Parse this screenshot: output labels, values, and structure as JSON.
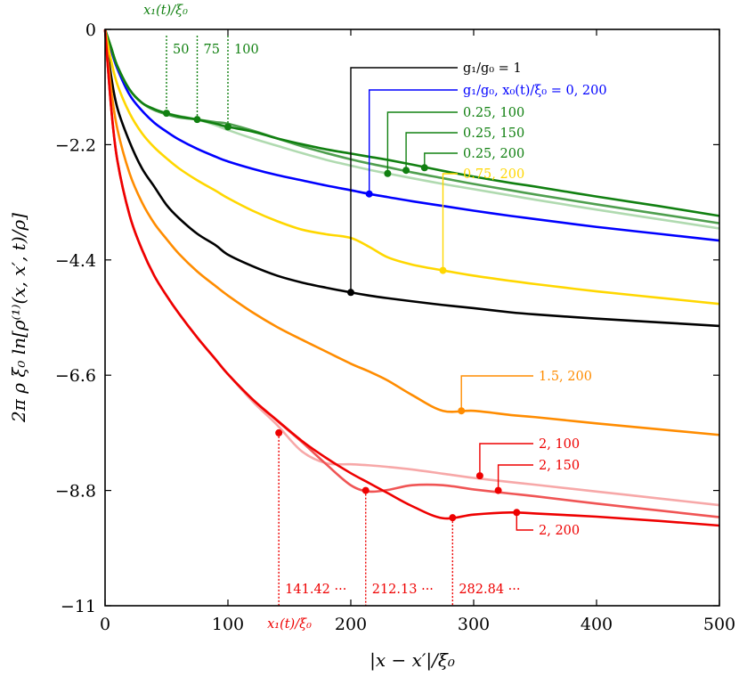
{
  "chart_data": {
    "type": "line",
    "xlabel": "|x − x′|/ξ₀",
    "ylabel": "2π ρ ξ₀ ln[ρ⁽¹⁾(x, x′, t)/ρ]",
    "xlim": [
      0,
      500
    ],
    "ylim": [
      -11,
      0
    ],
    "x_ticks": [
      0,
      100,
      200,
      300,
      400,
      500
    ],
    "x_tick_labels": [
      "0",
      "100",
      "200",
      "300",
      "400",
      "500"
    ],
    "y_ticks": [
      0,
      -2.2,
      -4.4,
      -6.6,
      -8.8,
      -11
    ],
    "y_tick_labels": [
      "0",
      "−2.2",
      "−4.4",
      "−6.6",
      "−8.8",
      "−11"
    ],
    "grid": false,
    "x": [
      0,
      5,
      10,
      20,
      30,
      40,
      50,
      60,
      75,
      90,
      100,
      120,
      140,
      160,
      180,
      200,
      215,
      230,
      250,
      275,
      300,
      330,
      350,
      400,
      450,
      500
    ],
    "series": [
      {
        "name": "g₁/g₀ = 1",
        "color": "#000000",
        "values": [
          -0.02,
          -0.9,
          -1.5,
          -2.15,
          -2.65,
          -3.0,
          -3.35,
          -3.6,
          -3.9,
          -4.12,
          -4.3,
          -4.52,
          -4.7,
          -4.83,
          -4.93,
          -5.02,
          -5.08,
          -5.13,
          -5.19,
          -5.26,
          -5.32,
          -5.4,
          -5.44,
          -5.52,
          -5.59,
          -5.66
        ]
      },
      {
        "name": "g₁/g₀, x₀(t)/ξ₀ = 0, 200",
        "color": "#0000ff",
        "values": [
          0,
          -0.4,
          -0.75,
          -1.25,
          -1.55,
          -1.78,
          -1.95,
          -2.1,
          -2.28,
          -2.43,
          -2.52,
          -2.66,
          -2.78,
          -2.88,
          -2.98,
          -3.07,
          -3.14,
          -3.2,
          -3.28,
          -3.37,
          -3.46,
          -3.56,
          -3.62,
          -3.77,
          -3.9,
          -4.03
        ]
      },
      {
        "name": "0.25, 100",
        "color": "#b0dab0",
        "values": [
          0,
          -0.35,
          -0.7,
          -1.15,
          -1.4,
          -1.54,
          -1.6,
          -1.65,
          -1.72,
          -1.83,
          -1.92,
          -2.08,
          -2.22,
          -2.36,
          -2.49,
          -2.6,
          -2.68,
          -2.75,
          -2.84,
          -2.95,
          -3.05,
          -3.17,
          -3.25,
          -3.44,
          -3.62,
          -3.8
        ]
      },
      {
        "name": "0.25, 150",
        "color": "#4f9f4f",
        "values": [
          0,
          -0.35,
          -0.7,
          -1.15,
          -1.4,
          -1.54,
          -1.62,
          -1.68,
          -1.72,
          -1.77,
          -1.8,
          -1.93,
          -2.08,
          -2.23,
          -2.36,
          -2.48,
          -2.56,
          -2.63,
          -2.73,
          -2.84,
          -2.95,
          -3.07,
          -3.15,
          -3.34,
          -3.52,
          -3.7
        ]
      },
      {
        "name": "0.25, 200",
        "color": "#118011",
        "values": [
          0,
          -0.35,
          -0.7,
          -1.15,
          -1.4,
          -1.52,
          -1.6,
          -1.66,
          -1.72,
          -1.8,
          -1.86,
          -1.95,
          -2.08,
          -2.19,
          -2.29,
          -2.37,
          -2.43,
          -2.49,
          -2.58,
          -2.7,
          -2.81,
          -2.93,
          -3.0,
          -3.19,
          -3.37,
          -3.56
        ]
      },
      {
        "name": "0.75, 200",
        "color": "#ffd700",
        "values": [
          0,
          -0.6,
          -1.05,
          -1.6,
          -1.98,
          -2.25,
          -2.46,
          -2.65,
          -2.88,
          -3.08,
          -3.22,
          -3.46,
          -3.66,
          -3.82,
          -3.91,
          -3.98,
          -4.15,
          -4.35,
          -4.49,
          -4.6,
          -4.7,
          -4.8,
          -4.86,
          -5.0,
          -5.12,
          -5.24
        ]
      },
      {
        "name": "1.5, 200",
        "color": "#ff8c00",
        "values": [
          0,
          -1.15,
          -1.9,
          -2.75,
          -3.3,
          -3.7,
          -4.0,
          -4.28,
          -4.62,
          -4.9,
          -5.08,
          -5.4,
          -5.68,
          -5.92,
          -6.15,
          -6.38,
          -6.53,
          -6.7,
          -6.98,
          -7.28,
          -7.28,
          -7.36,
          -7.4,
          -7.52,
          -7.63,
          -7.74
        ]
      },
      {
        "name": "2, 100",
        "color": "#f7a8a8",
        "values": [
          0,
          -1.5,
          -2.5,
          -3.55,
          -4.2,
          -4.7,
          -5.08,
          -5.42,
          -5.88,
          -6.3,
          -6.58,
          -7.1,
          -7.55,
          -8.05,
          -8.28,
          -8.3,
          -8.32,
          -8.35,
          -8.4,
          -8.48,
          -8.56,
          -8.64,
          -8.69,
          -8.82,
          -8.95,
          -9.08
        ]
      },
      {
        "name": "2, 150",
        "color": "#f05555",
        "values": [
          0,
          -1.5,
          -2.5,
          -3.55,
          -4.2,
          -4.7,
          -5.08,
          -5.42,
          -5.88,
          -6.3,
          -6.58,
          -7.06,
          -7.47,
          -7.87,
          -8.3,
          -8.7,
          -8.82,
          -8.79,
          -8.7,
          -8.7,
          -8.78,
          -8.86,
          -8.91,
          -9.05,
          -9.18,
          -9.31
        ]
      },
      {
        "name": "2, 200",
        "color": "#ee0000",
        "values": [
          0,
          -1.5,
          -2.5,
          -3.55,
          -4.2,
          -4.7,
          -5.08,
          -5.42,
          -5.88,
          -6.3,
          -6.58,
          -7.06,
          -7.46,
          -7.85,
          -8.18,
          -8.47,
          -8.66,
          -8.85,
          -9.1,
          -9.33,
          -9.26,
          -9.22,
          -9.24,
          -9.3,
          -9.38,
          -9.47
        ]
      }
    ],
    "markers": [
      {
        "series": "g₁/g₀ = 1",
        "x": 200,
        "y": -5.02
      },
      {
        "series": "g₁/g₀, x₀(t)/ξ₀ = 0, 200",
        "x": 215,
        "y": -3.14
      },
      {
        "series": "0.25, 100",
        "x": 230,
        "y": -2.75
      },
      {
        "series": "0.25, 150",
        "x": 245,
        "y": -2.69
      },
      {
        "series": "0.25, 200",
        "x": 260,
        "y": -2.64
      },
      {
        "series": "0.75, 200",
        "x": 275,
        "y": -4.6
      },
      {
        "series": "1.5, 200",
        "x": 290,
        "y": -7.28
      },
      {
        "series": "2, 100",
        "x": 305,
        "y": -8.52
      },
      {
        "series": "2, 150",
        "x": 320,
        "y": -8.8
      },
      {
        "series": "2, 200",
        "x": 335,
        "y": -9.22
      },
      {
        "series": "0.25, 100",
        "x": 50,
        "y": -1.6
      },
      {
        "series": "0.25, 150",
        "x": 75,
        "y": -1.72
      },
      {
        "series": "0.25, 200",
        "x": 100,
        "y": -1.86
      },
      {
        "series": "2, 100",
        "x": 141.42,
        "y": -7.7
      },
      {
        "series": "2, 150",
        "x": 212.13,
        "y": -8.8
      },
      {
        "series": "2, 200",
        "x": 282.84,
        "y": -9.32
      }
    ],
    "annotations": {
      "green_title": "x₁(t)/ξ₀",
      "green_labels": [
        "50",
        "75",
        "100"
      ],
      "red_title": "x₁(t)/ξ₀",
      "red_labels": [
        "141.42 ···",
        "212.13 ···",
        "282.84 ···"
      ],
      "legend_labels": [
        {
          "text": "g₁/g₀ = 1",
          "color": "#000000"
        },
        {
          "text": "g₁/g₀, x₀(t)/ξ₀ = 0, 200",
          "color": "#0000ff"
        },
        {
          "text": "0.25, 100",
          "color": "#118011"
        },
        {
          "text": "0.25, 150",
          "color": "#118011"
        },
        {
          "text": "0.25, 200",
          "color": "#118011"
        },
        {
          "text": "0.75, 200",
          "color": "#ffd700"
        },
        {
          "text": "1.5, 200",
          "color": "#ff8c00"
        },
        {
          "text": "2, 100",
          "color": "#ee0000"
        },
        {
          "text": "2, 150",
          "color": "#ee0000"
        },
        {
          "text": "2, 200",
          "color": "#ee0000"
        }
      ]
    }
  }
}
